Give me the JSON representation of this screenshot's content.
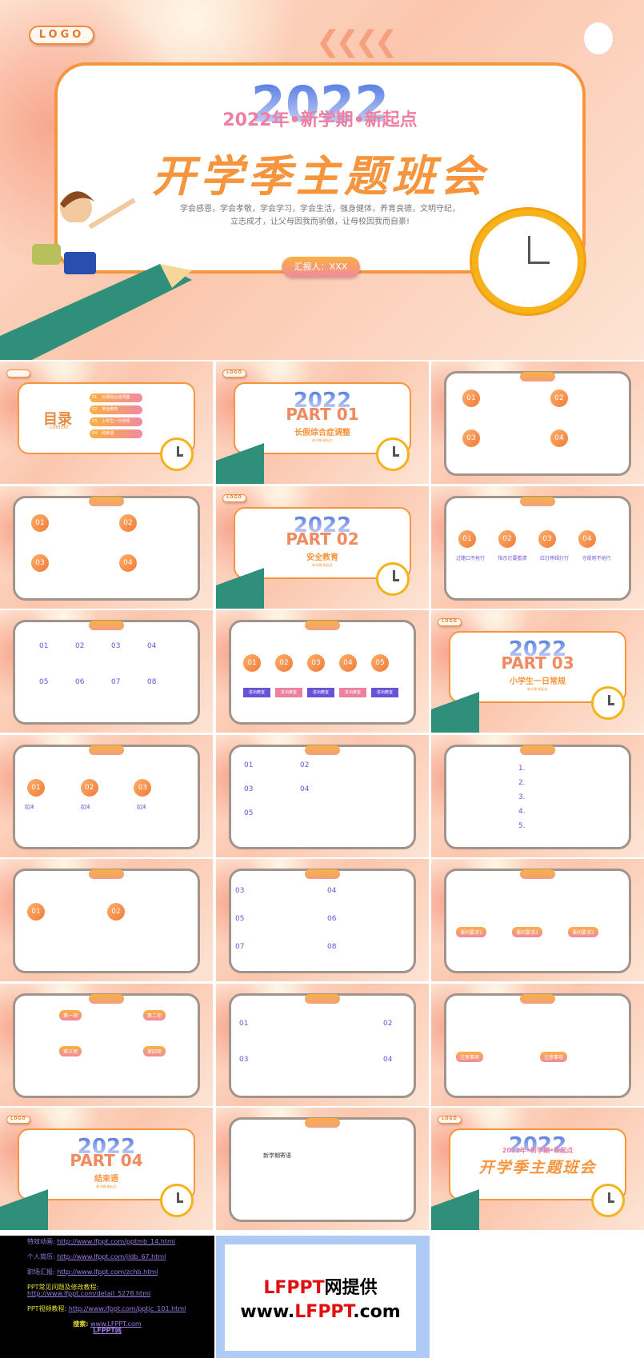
{
  "hero": {
    "logo": "LOGO",
    "year": "2022",
    "subtitle": "2022年•新学期•新起点",
    "title": "开学季主题班会",
    "desc_line1": "学会感恩，学会孝敬，学会学习，学会生活，强身健体，养育良德，文明守纪，",
    "desc_line2": "立志成才，让父母因我而骄傲，让母校因我而自豪!",
    "reporter": "汇报人：XXX"
  },
  "colors": {
    "accent": "#f7953e",
    "pink": "#ef7fa0",
    "purple": "#6a52d8",
    "blue": "#4a72e0"
  },
  "slides": [
    {
      "type": "toc",
      "title": "目录",
      "sub": "CONTENT",
      "items": [
        {
          "n": "01",
          "label": "长假综合症调整"
        },
        {
          "n": "02",
          "label": "安全教育"
        },
        {
          "n": "03",
          "label": "小学生一日常规"
        },
        {
          "n": "04",
          "label": "结束语"
        }
      ]
    },
    {
      "type": "part",
      "logo": "LOGO",
      "year": "2022",
      "part": "PART 01",
      "title": "长假综合症调整",
      "tag": "·新学期·新起点·"
    },
    {
      "type": "circles4",
      "nums": [
        "01",
        "02",
        "03",
        "04"
      ]
    },
    {
      "type": "arrows4",
      "nums": [
        "01",
        "02",
        "03",
        "04"
      ]
    },
    {
      "type": "part",
      "logo": "LOGO",
      "year": "2022",
      "part": "PART 02",
      "title": "安全教育",
      "tag": "·新学期·新起点·"
    },
    {
      "type": "cards4",
      "nums": [
        "01",
        "02",
        "03",
        "04"
      ],
      "labels": [
        "过路口不抢行",
        "指示灯要看清",
        "红灯停绿灯行",
        "守规则不抢行"
      ]
    },
    {
      "type": "grid8",
      "nums": [
        "01",
        "02",
        "03",
        "04",
        "05",
        "06",
        "07",
        "08"
      ]
    },
    {
      "type": "five",
      "nums": [
        "01",
        "02",
        "03",
        "04",
        "05"
      ],
      "button": "进出教室"
    },
    {
      "type": "part",
      "logo": "LOGO",
      "year": "2022",
      "part": "PART 03",
      "title": "小学生一日常规",
      "tag": "·新学期·新起点·"
    },
    {
      "type": "three",
      "nums": [
        "01",
        "02",
        "03"
      ],
      "labels": [
        "起床",
        "起床",
        "起床"
      ]
    },
    {
      "type": "list5",
      "nums": [
        "01",
        "02",
        "03",
        "04",
        "05"
      ]
    },
    {
      "type": "steps5",
      "nums": [
        "1.",
        "2.",
        "3.",
        "4.",
        "5."
      ]
    },
    {
      "type": "two",
      "nums": [
        "01",
        "02"
      ]
    },
    {
      "type": "six",
      "nums": [
        "03",
        "04",
        "05",
        "06",
        "07",
        "08"
      ]
    },
    {
      "type": "hex3",
      "labels": [
        "课间要求1",
        "课间要求2",
        "课间要求3"
      ]
    },
    {
      "type": "clocks4",
      "labels": [
        "第一项",
        "第二项",
        "第三项",
        "第四项"
      ]
    },
    {
      "type": "diamond",
      "nums": [
        "01",
        "02",
        "03",
        "04"
      ]
    },
    {
      "type": "notes",
      "labels": [
        "注意事项",
        "注意事项"
      ]
    },
    {
      "type": "part",
      "logo": "LOGO",
      "year": "2022",
      "part": "PART 04",
      "title": "结束语",
      "tag": "·新学期·新起点·"
    },
    {
      "type": "message",
      "title": "新学期寄语"
    },
    {
      "type": "cover",
      "logo": "LOGO",
      "year": "2022",
      "subtitle": "2022年•新学期•新起点",
      "title": "开学季主题班会"
    }
  ],
  "footer": {
    "links": [
      {
        "label": "特效动画",
        "url": "http://www.lfppt.com/pptmb_14.html"
      },
      {
        "label": "个人简历",
        "url": "http://www.lfppt.com/jldb_67.html"
      },
      {
        "label": "职场汇报",
        "url": "http://www.lfppt.com/zchb.html"
      }
    ],
    "faq_label": "PPT常见问题及修改教程:",
    "faq_url": "http://www.lfppt.com/detail_5278.html",
    "video_label": "PPT视频教程:",
    "video_url": "http://www.lfppt.com/pptjc_101.html",
    "search_label": "搜索:",
    "search_url": "www.LFPPT.com",
    "site_name": "LFPPT网",
    "brand_red1": "LFPPT",
    "brand_black1": "网提供",
    "brand_black2a": "www.",
    "brand_red2": "LFPPT",
    "brand_black2b": ".com"
  }
}
